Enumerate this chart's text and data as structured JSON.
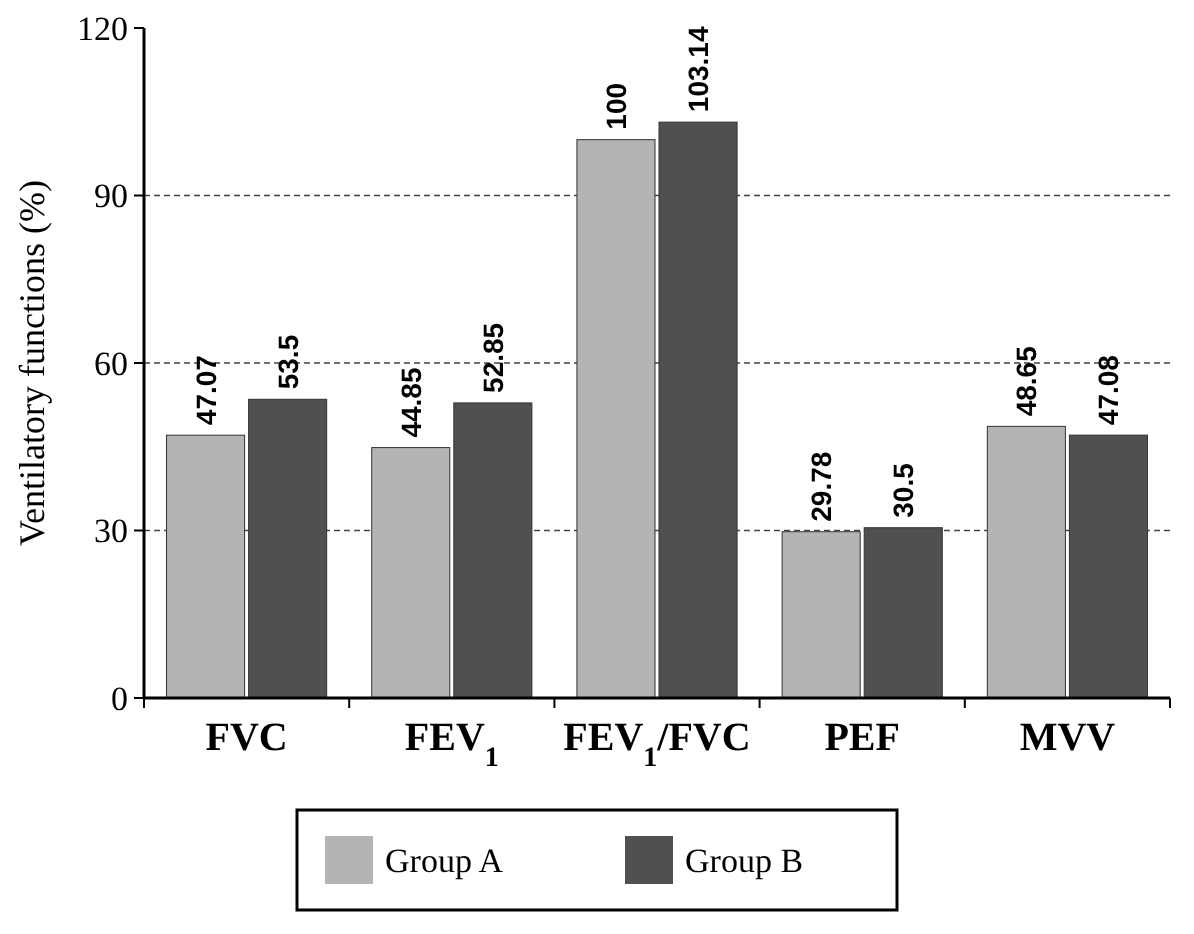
{
  "chart_data": {
    "type": "bar",
    "ylabel": "Ventilatory functions (%)",
    "categories": [
      "FVC",
      "FEV$_{1}$",
      "FEV$_{1}$/FVC",
      "PEF",
      "MVV"
    ],
    "series": [
      {
        "name": "Group A",
        "color": "#b4b4b4",
        "values": [
          47.07,
          44.85,
          100,
          29.78,
          48.65
        ]
      },
      {
        "name": "Group B",
        "color": "#505050",
        "values": [
          53.5,
          52.85,
          103.14,
          30.5,
          47.08
        ]
      }
    ],
    "ylim": [
      0,
      120
    ],
    "yticks": [
      0,
      30,
      60,
      90,
      120
    ],
    "grid": "y",
    "legend": "bottom",
    "data_labels": true
  }
}
